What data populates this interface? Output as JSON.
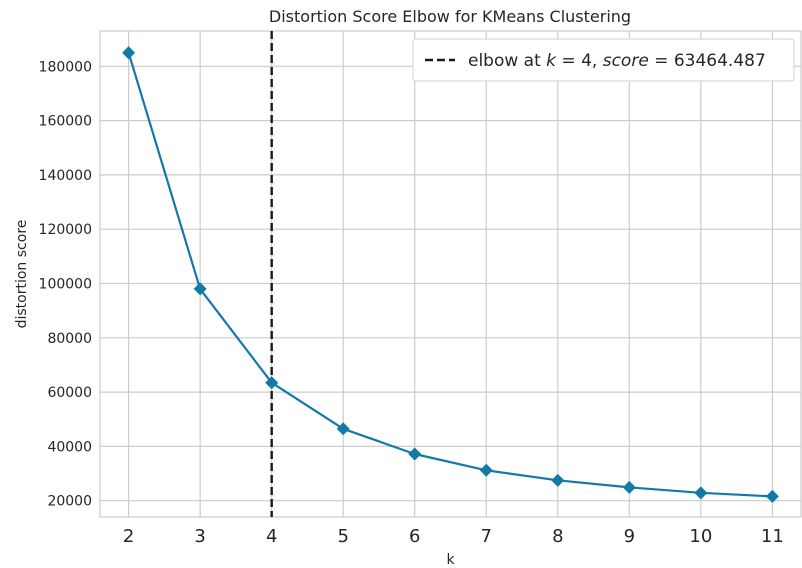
{
  "chart_data": {
    "type": "line",
    "title": "Distortion Score Elbow for KMeans Clustering",
    "xlabel": "k",
    "ylabel": "distortion score",
    "x": [
      2,
      3,
      4,
      5,
      6,
      7,
      8,
      9,
      10,
      11
    ],
    "xlim": [
      1.6,
      11.4
    ],
    "ylim": [
      14000,
      193000
    ],
    "yticks": [
      20000,
      40000,
      60000,
      80000,
      100000,
      120000,
      140000,
      160000,
      180000
    ],
    "grid": true,
    "series": [
      {
        "values": [
          185000,
          98000,
          63464.487,
          46500,
          37200,
          31200,
          27500,
          24900,
          22900,
          21600
        ],
        "color": "#1379a6",
        "marker": "diamond"
      }
    ],
    "elbow": {
      "k": 4,
      "score": 63464.487,
      "color": "#1a1a1a",
      "style": "dashed"
    },
    "legend": {
      "position": "top-right",
      "text_prefix": "elbow at ",
      "k_symbol": "k",
      "k_value": " = 4, ",
      "score_symbol": "score",
      "score_value": " = 63464.487"
    }
  }
}
